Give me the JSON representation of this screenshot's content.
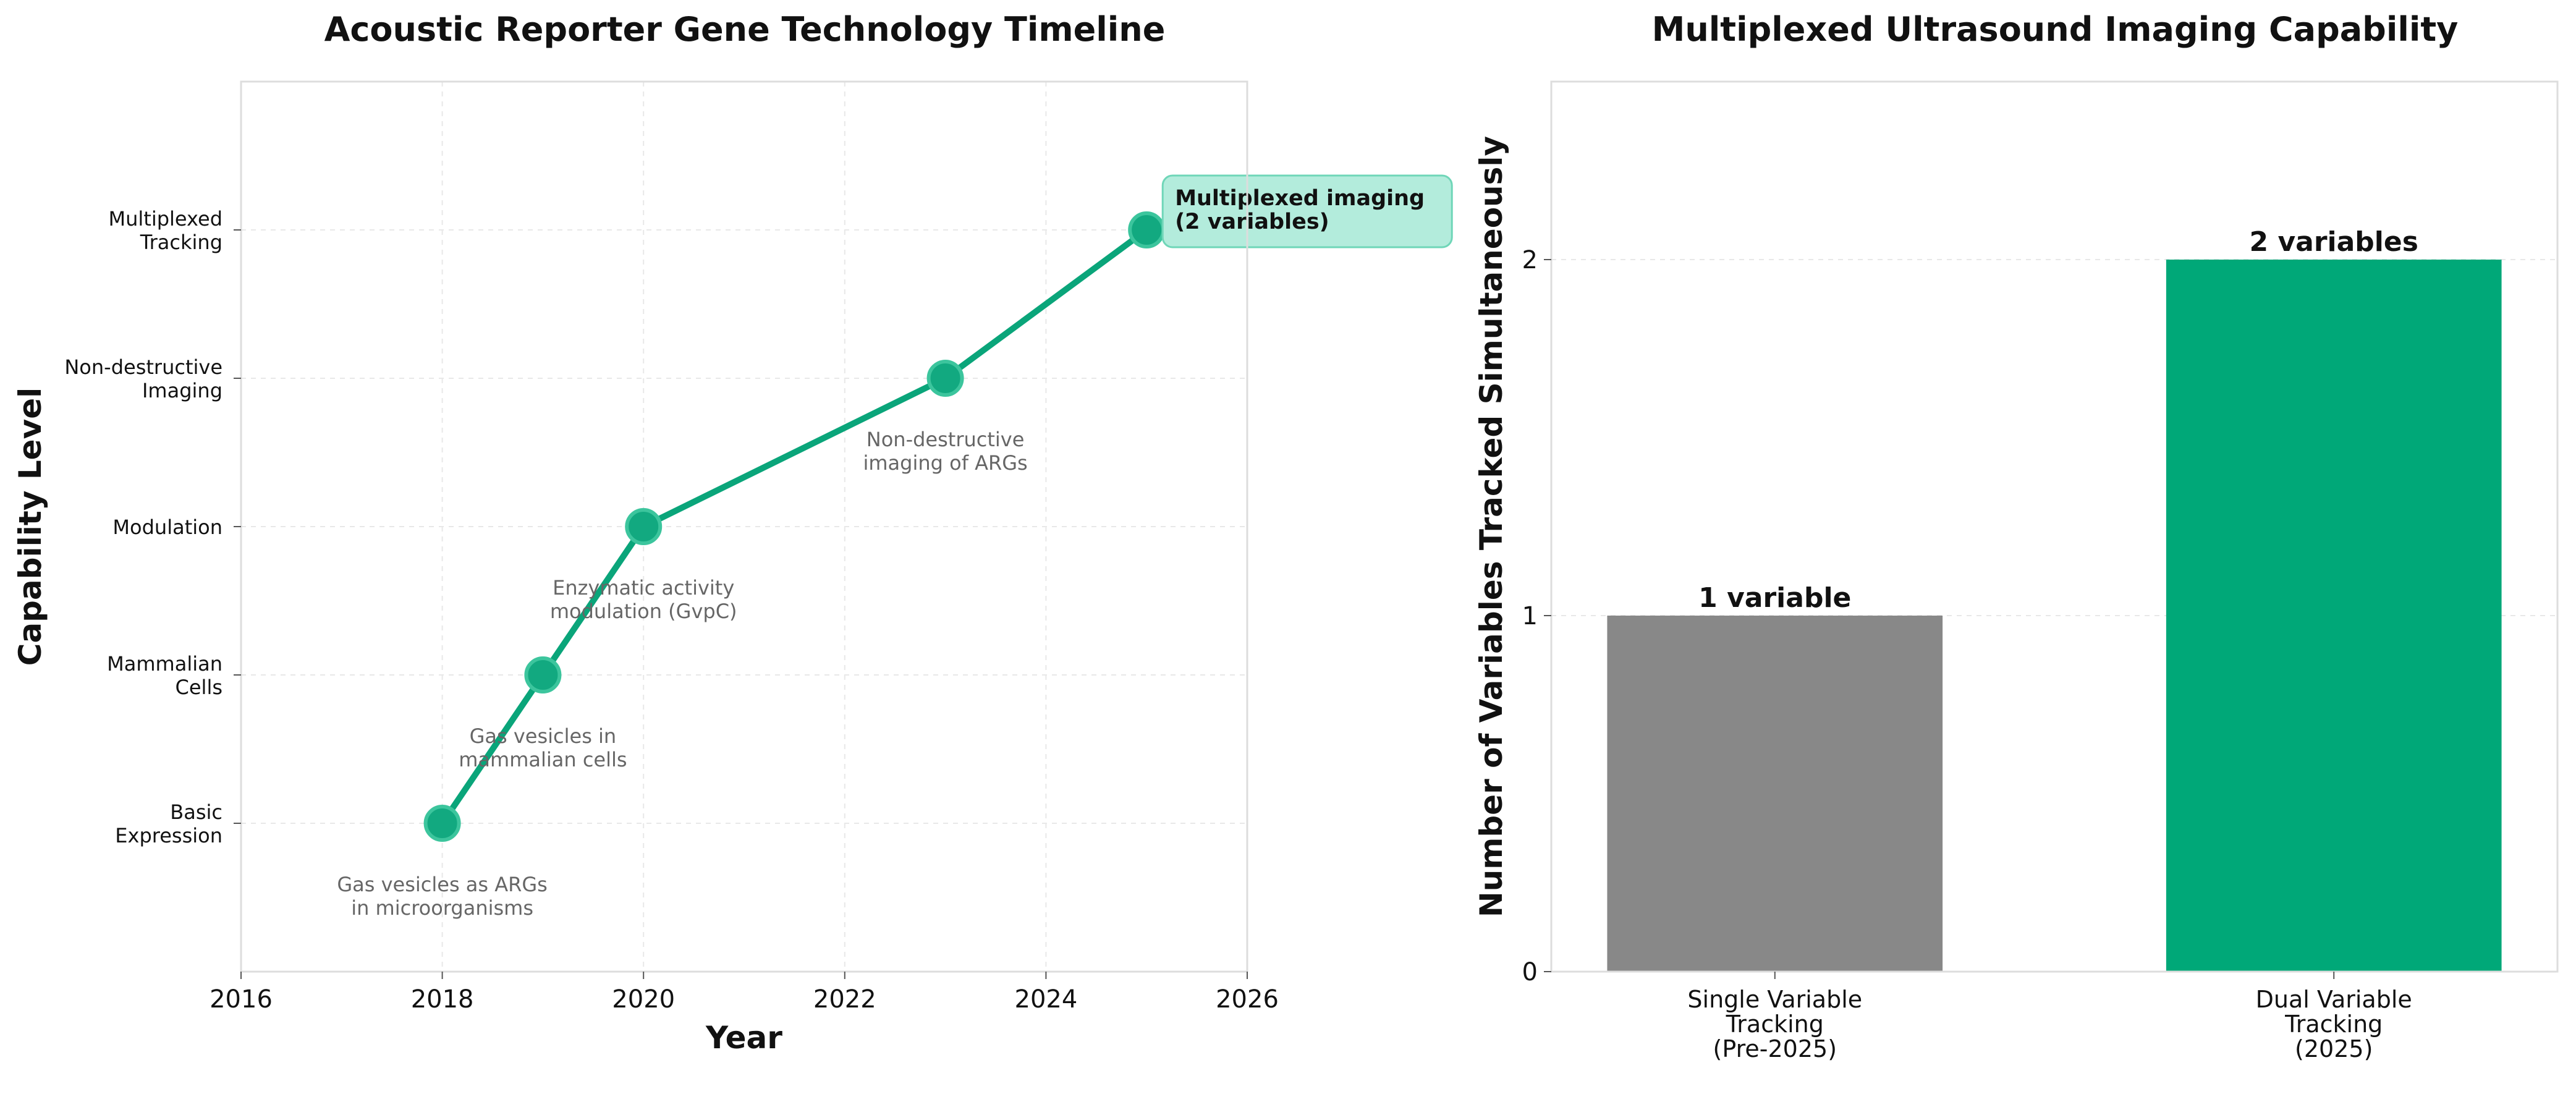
{
  "chart_data": [
    {
      "type": "line",
      "title": "Acoustic Reporter Gene Technology Timeline",
      "xlabel": "Year",
      "ylabel": "Capability Level",
      "xlim": [
        2016,
        2026
      ],
      "ylim": [
        0,
        6
      ],
      "x_ticks": [
        2016,
        2018,
        2020,
        2022,
        2024,
        2026
      ],
      "y_ticks": [
        {
          "value": 1,
          "label": [
            "Basic",
            "Expression"
          ]
        },
        {
          "value": 2,
          "label": [
            "Mammalian",
            "Cells"
          ]
        },
        {
          "value": 3,
          "label": [
            "Modulation"
          ]
        },
        {
          "value": 4,
          "label": [
            "Non-destructive",
            "Imaging"
          ]
        },
        {
          "value": 5,
          "label": [
            "Multiplexed",
            "Tracking"
          ]
        }
      ],
      "grid": true,
      "points": [
        {
          "x": 2018,
          "y": 1,
          "annotation": [
            "Gas vesicles as ARGs",
            "in microorganisms"
          ]
        },
        {
          "x": 2019,
          "y": 2,
          "annotation": [
            "Gas vesicles in",
            "mammalian cells"
          ]
        },
        {
          "x": 2020,
          "y": 3,
          "annotation": [
            "Enzymatic activity",
            "modulation (GvpC)"
          ]
        },
        {
          "x": 2023,
          "y": 4,
          "annotation": [
            "Non-destructive",
            "imaging of ARGs"
          ]
        },
        {
          "x": 2025,
          "y": 5,
          "annotation": [
            "Multiplexed imaging",
            "(2 variables)"
          ],
          "highlight": true
        }
      ],
      "colors": {
        "line": "#0aa57a",
        "marker": "#12a980",
        "highlight_box": "#b3ecdc",
        "annotation_text": "#666666"
      }
    },
    {
      "type": "bar",
      "title": "Multiplexed Ultrasound Imaging Capability",
      "xlabel": "",
      "ylabel": "Number of Variables Tracked Simultaneously",
      "ylim": [
        0,
        2.5
      ],
      "y_ticks": [
        0,
        1,
        2
      ],
      "grid": true,
      "categories": [
        [
          "Single Variable",
          "Tracking",
          "(Pre-2025)"
        ],
        [
          "Dual Variable",
          "Tracking",
          "(2025)"
        ]
      ],
      "values": [
        1,
        2
      ],
      "data_labels": [
        "1 variable",
        "2 variables"
      ],
      "colors": [
        "#888888",
        "#00a878"
      ]
    }
  ]
}
